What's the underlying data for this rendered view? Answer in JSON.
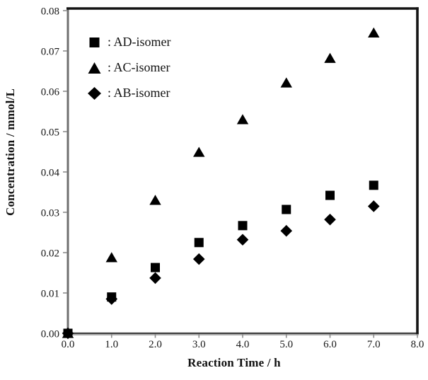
{
  "chart_data": {
    "type": "scatter",
    "title": "",
    "xlabel": "Reaction Time / h",
    "ylabel": "Concentration / mmol/L",
    "xlim": [
      0,
      8
    ],
    "ylim": [
      0,
      0.08
    ],
    "x_ticks": [
      "0.0",
      "1.0",
      "2.0",
      "3.0",
      "4.0",
      "5.0",
      "6.0",
      "7.0",
      "8.0"
    ],
    "y_ticks": [
      "0.00",
      "0.01",
      "0.02",
      "0.03",
      "0.04",
      "0.05",
      "0.06",
      "0.07",
      "0.08"
    ],
    "grid": false,
    "legend_position": "top-left",
    "x": [
      0,
      1,
      2,
      3,
      4,
      5,
      6,
      7
    ],
    "series": [
      {
        "name": "AD-isomer",
        "marker": "square",
        "legend_label": ": AD-isomer",
        "values": [
          0.0,
          0.009,
          0.0163,
          0.0225,
          0.0267,
          0.0307,
          0.0342,
          0.0367
        ]
      },
      {
        "name": "AC-isomer",
        "marker": "triangle",
        "legend_label": ": AC-isomer",
        "values": [
          0.0,
          0.0188,
          0.033,
          0.0449,
          0.053,
          0.0621,
          0.0682,
          0.0745
        ]
      },
      {
        "name": "AB-isomer",
        "marker": "diamond",
        "legend_label": ": AB-isomer",
        "values": [
          0.0,
          0.0085,
          0.0137,
          0.0184,
          0.0232,
          0.0254,
          0.0282,
          0.0315
        ]
      }
    ],
    "draw_order": [
      1,
      2,
      0
    ],
    "colors": {
      "marker": "#000000",
      "axis": "#6f6f6f",
      "axis_dark": "#3d3d3d",
      "axis_shadow": "#9b9b9b",
      "frame": "#141414",
      "tick": "#8c8c8c",
      "text": "#161616",
      "background": "#ffffff"
    }
  }
}
